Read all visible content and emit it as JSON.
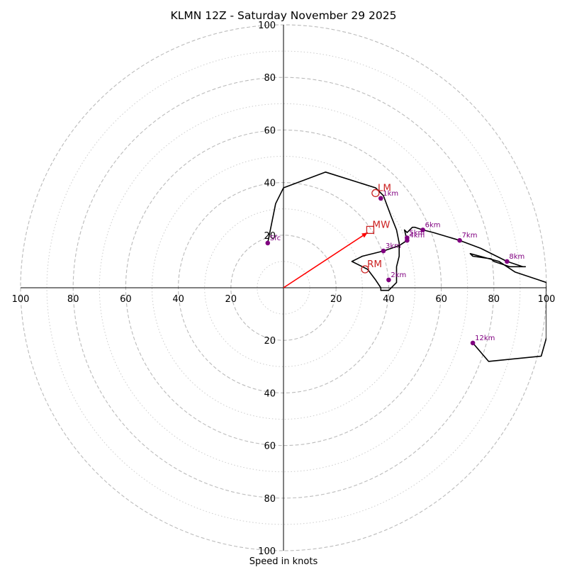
{
  "chart_data": {
    "type": "hodograph",
    "title": "KLMN 12Z - Saturday November 29 2025",
    "xlabel": "Speed in knots",
    "axis_range": [
      -100,
      100
    ],
    "ring_major": [
      20,
      40,
      60,
      80,
      100
    ],
    "ring_minor": [
      10,
      30,
      50,
      70,
      90
    ],
    "tick_values": [
      20,
      40,
      60,
      80,
      100
    ],
    "tick_labels_left": [
      "100",
      "80",
      "60",
      "40",
      "20"
    ],
    "tick_labels_right": [
      "20",
      "40",
      "60",
      "80",
      "100"
    ],
    "tick_labels_top": [
      "100",
      "80",
      "60",
      "40",
      "20"
    ],
    "tick_labels_bottom": [
      "20",
      "40",
      "60",
      "80",
      "100"
    ],
    "trace": {
      "u": [
        -6,
        -3,
        0,
        16,
        35,
        38,
        41,
        43,
        44,
        44,
        43,
        43,
        43,
        40,
        37,
        37,
        35,
        32,
        26,
        30,
        38,
        44,
        47,
        46,
        47,
        49,
        50,
        53,
        57,
        67,
        75,
        85,
        91,
        92,
        86,
        80,
        79,
        72,
        71,
        82,
        88,
        97,
        100,
        100,
        98,
        78,
        72
      ],
      "v": [
        17,
        32,
        38,
        44,
        38,
        35,
        27,
        22,
        17,
        12,
        8,
        3,
        2,
        -1,
        -1,
        0,
        3,
        7,
        10,
        12,
        14,
        16,
        18,
        22,
        21,
        23,
        23,
        22,
        21,
        18,
        15,
        10,
        8,
        8,
        8,
        10,
        11,
        12,
        13,
        10,
        6,
        3,
        2,
        -19,
        -26,
        -28,
        -21
      ],
      "color": "#000000"
    },
    "height_markers": [
      {
        "label": "Sfc",
        "u": -6,
        "v": 17
      },
      {
        "label": "1km",
        "u": 37,
        "v": 34
      },
      {
        "label": "2km",
        "u": 40,
        "v": 3
      },
      {
        "label": "3km",
        "u": 38,
        "v": 14
      },
      {
        "label": "4km",
        "u": 47,
        "v": 18
      },
      {
        "label": "5km",
        "u": 47,
        "v": 19
      },
      {
        "label": "6km",
        "u": 53,
        "v": 22
      },
      {
        "label": "7km",
        "u": 67,
        "v": 18
      },
      {
        "label": "8km",
        "u": 85,
        "v": 10
      },
      {
        "label": "12km",
        "u": 72,
        "v": -21
      }
    ],
    "marker_color": "#800080",
    "storm_motion": [
      {
        "label": "LM",
        "u": 35,
        "v": 36,
        "shape": "circle"
      },
      {
        "label": "MW",
        "u": 33,
        "v": 22,
        "shape": "square"
      },
      {
        "label": "RM",
        "u": 31,
        "v": 7,
        "shape": "circle"
      }
    ],
    "storm_color": "#cc2222",
    "mean_vector": {
      "u": 32,
      "v": 21,
      "color": "#ff0000"
    },
    "grid_color": "#bbbbbb"
  }
}
